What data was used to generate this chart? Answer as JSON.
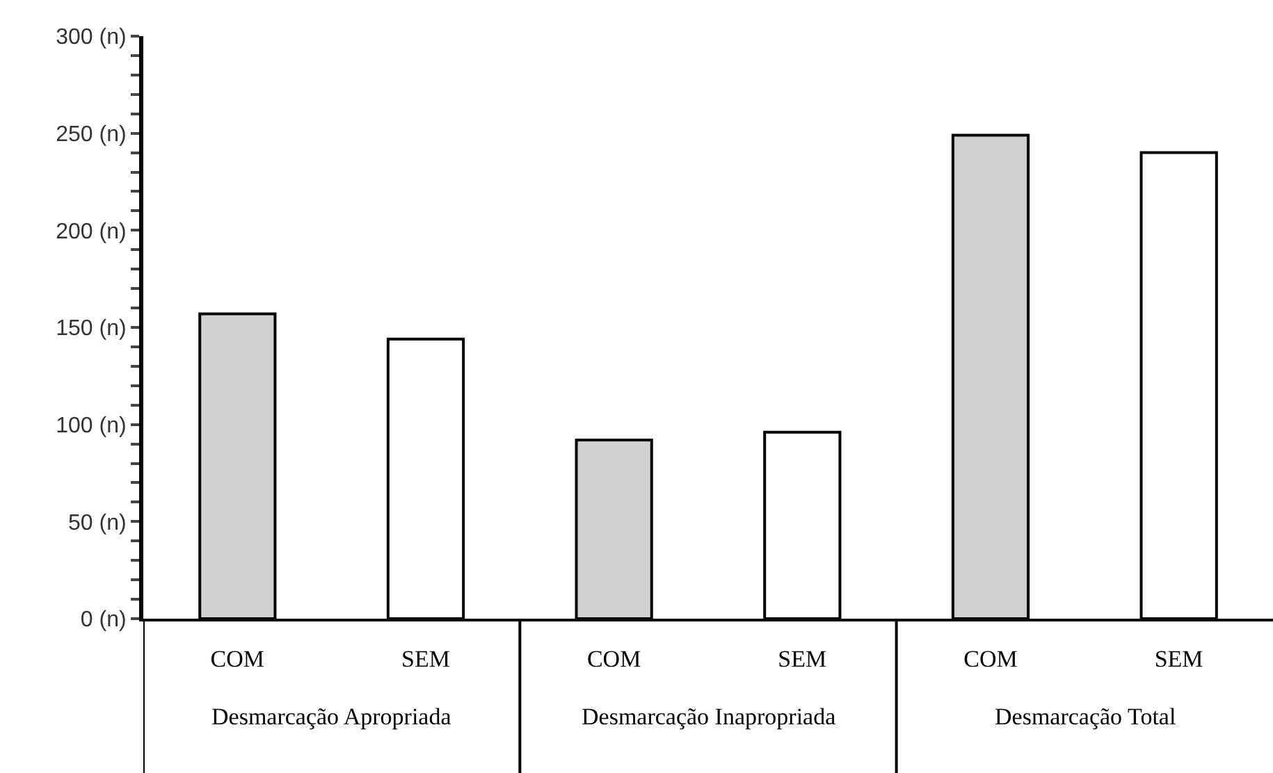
{
  "chart_data": {
    "type": "bar",
    "categories": [
      "COM",
      "SEM",
      "COM",
      "SEM",
      "COM",
      "SEM"
    ],
    "values": [
      157,
      144,
      92,
      96,
      249,
      240
    ],
    "colors": [
      "#d0d0d0",
      "#ffffff",
      "#d0d0d0",
      "#ffffff",
      "#d0d0d0",
      "#ffffff"
    ],
    "annotations": [
      "Desmarcação Apropriada",
      "Desmarcação Inapropriada",
      "Desmarcação Total"
    ],
    "ylim": [
      0,
      300
    ],
    "yticks": [
      {
        "value": 0,
        "label": "0 (n)"
      },
      {
        "value": 10,
        "label": null
      },
      {
        "value": 20,
        "label": null
      },
      {
        "value": 30,
        "label": null
      },
      {
        "value": 40,
        "label": null
      },
      {
        "value": 50,
        "label": "50 (n)"
      },
      {
        "value": 60,
        "label": null
      },
      {
        "value": 70,
        "label": null
      },
      {
        "value": 80,
        "label": null
      },
      {
        "value": 90,
        "label": null
      },
      {
        "value": 100,
        "label": "100 (n)"
      },
      {
        "value": 110,
        "label": null
      },
      {
        "value": 120,
        "label": null
      },
      {
        "value": 130,
        "label": null
      },
      {
        "value": 140,
        "label": null
      },
      {
        "value": 150,
        "label": "150 (n)"
      },
      {
        "value": 160,
        "label": null
      },
      {
        "value": 170,
        "label": null
      },
      {
        "value": 180,
        "label": null
      },
      {
        "value": 190,
        "label": null
      },
      {
        "value": 200,
        "label": "200 (n)"
      },
      {
        "value": 210,
        "label": null
      },
      {
        "value": 220,
        "label": null
      },
      {
        "value": 230,
        "label": null
      },
      {
        "value": 240,
        "label": null
      },
      {
        "value": 250,
        "label": "250 (n)"
      },
      {
        "value": 260,
        "label": null
      },
      {
        "value": 270,
        "label": null
      },
      {
        "value": 280,
        "label": null
      },
      {
        "value": 290,
        "label": null
      },
      {
        "value": 300,
        "label": "300 (n)"
      }
    ],
    "legend": false
  }
}
